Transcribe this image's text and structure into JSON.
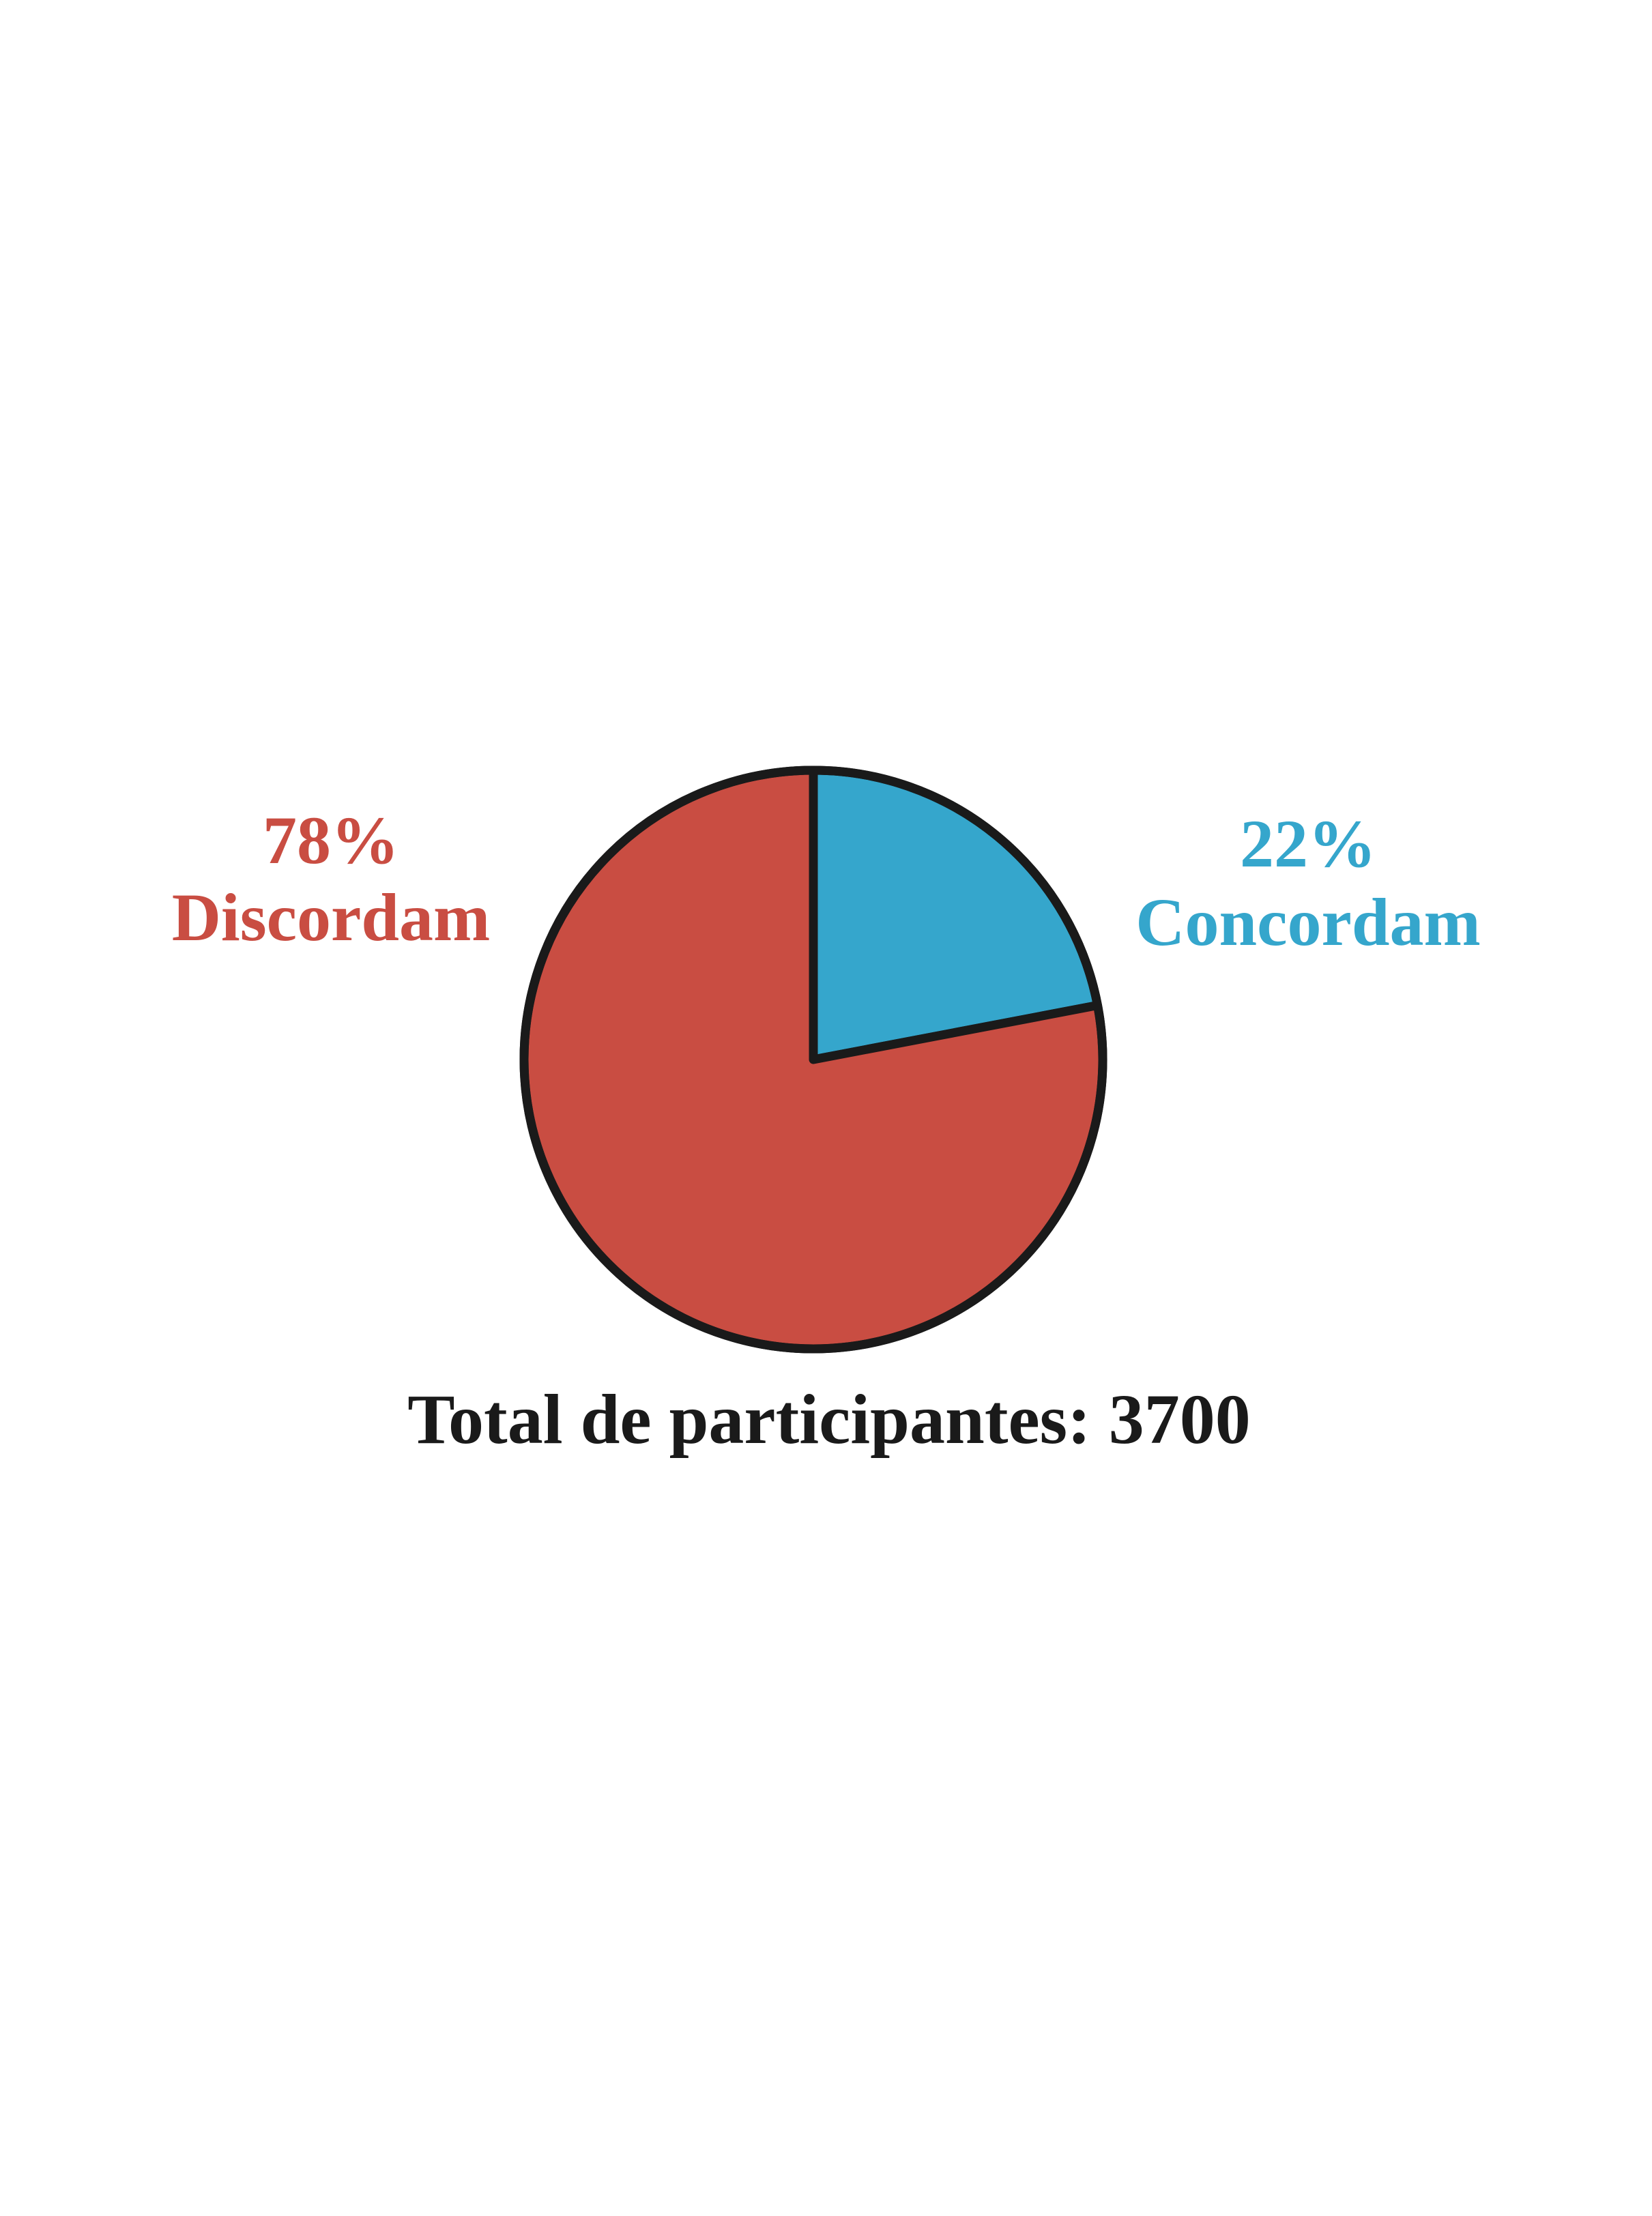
{
  "chart_data": {
    "type": "pie",
    "slices": [
      {
        "label": "Discordam",
        "percent_label": "78%",
        "value": 78,
        "color": "#c94d42"
      },
      {
        "label": "Concordam",
        "percent_label": "22%",
        "value": 22,
        "color": "#35a6cc"
      }
    ],
    "total_label": "Total de participantes: 3700",
    "outline_color": "#1a1a1a",
    "start": "top",
    "direction": "clockwise",
    "legend": "none"
  }
}
